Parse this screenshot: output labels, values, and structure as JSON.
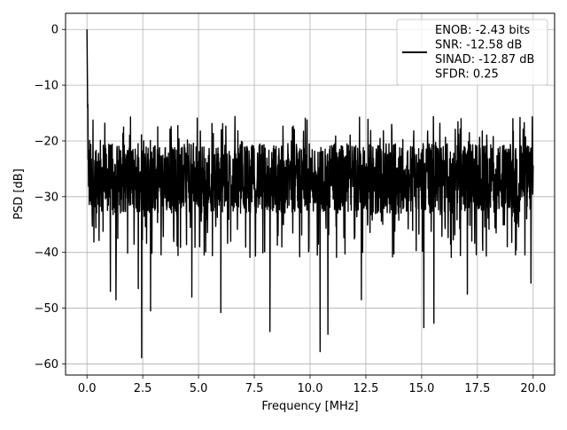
{
  "chart_data": {
    "type": "line",
    "title": "",
    "xlabel": "Frequency [MHz]",
    "ylabel": "PSD [dB]",
    "xlim": [
      -0.96,
      20.96
    ],
    "ylim": [
      -62.0,
      2.9
    ],
    "xticks": [
      0.0,
      2.5,
      5.0,
      7.5,
      10.0,
      12.5,
      15.0,
      17.5,
      20.0
    ],
    "xtick_labels": [
      "0.0",
      "2.5",
      "5.0",
      "7.5",
      "10.0",
      "12.5",
      "15.0",
      "17.5",
      "20.0"
    ],
    "yticks": [
      0,
      -10,
      -20,
      -30,
      -40,
      -50,
      -60
    ],
    "ytick_labels": [
      "0",
      "−10",
      "−20",
      "−30",
      "−40",
      "−50",
      "−60"
    ],
    "grid": true,
    "line_color": "#000000",
    "legend": {
      "position": "top-right",
      "lines": [
        "ENOB: -2.43 bits",
        "SNR: -12.58 dB",
        "SINAD: -12.87 dB",
        "SFDR: 0.25"
      ]
    },
    "series": [
      {
        "x_start": 0.0,
        "x_end": 20.0,
        "points_count": 2000,
        "peak": {
          "x": 0.0,
          "y": 0.0
        },
        "band_upper": -20.5,
        "band_lower": -33.0,
        "notable_dips": [
          {
            "x": 2.45,
            "y": -58.9
          },
          {
            "x": 10.45,
            "y": -57.8
          },
          {
            "x": 15.1,
            "y": -53.5
          },
          {
            "x": 8.2,
            "y": -54.2
          },
          {
            "x": 15.55,
            "y": -52.7
          },
          {
            "x": 10.8,
            "y": -54.7
          },
          {
            "x": 2.85,
            "y": -50.5
          },
          {
            "x": 6.0,
            "y": -50.8
          },
          {
            "x": 2.3,
            "y": -46.5
          },
          {
            "x": 1.05,
            "y": -47.0
          },
          {
            "x": 1.3,
            "y": -48.5
          },
          {
            "x": 4.7,
            "y": -48.0
          },
          {
            "x": 12.3,
            "y": -48.5
          },
          {
            "x": 17.05,
            "y": -47.5
          },
          {
            "x": 19.9,
            "y": -45.5
          }
        ]
      }
    ]
  }
}
